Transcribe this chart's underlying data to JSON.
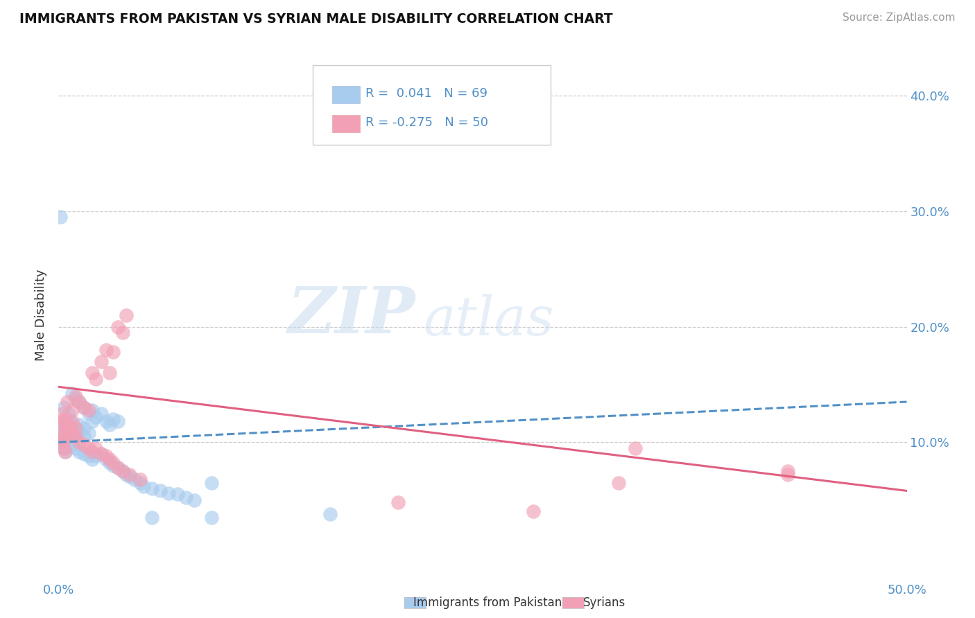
{
  "title": "IMMIGRANTS FROM PAKISTAN VS SYRIAN MALE DISABILITY CORRELATION CHART",
  "source": "Source: ZipAtlas.com",
  "ylabel": "Male Disability",
  "xlim": [
    0.0,
    0.5
  ],
  "ylim": [
    -0.02,
    0.44
  ],
  "yticks": [
    0.1,
    0.2,
    0.3,
    0.4
  ],
  "ytick_labels": [
    "10.0%",
    "20.0%",
    "30.0%",
    "40.0%"
  ],
  "gridline_y": [
    0.1,
    0.2,
    0.3,
    0.4
  ],
  "pakistan_color": "#A8CCEE",
  "syria_color": "#F2A0B5",
  "pakistan_line_color": "#5090C8",
  "syria_line_color": "#E06080",
  "pakistan_R": 0.041,
  "pakistan_N": 69,
  "syria_R": -0.275,
  "syria_N": 50,
  "legend_label_pak": "Immigrants from Pakistan",
  "legend_label_syr": "Syrians",
  "watermark_ZIP": "ZIP",
  "watermark_atlas": "atlas",
  "pakistan_scatter": [
    [
      0.005,
      0.12
    ],
    [
      0.007,
      0.118
    ],
    [
      0.01,
      0.105
    ],
    [
      0.012,
      0.115
    ],
    [
      0.015,
      0.112
    ],
    [
      0.018,
      0.108
    ],
    [
      0.02,
      0.118
    ],
    [
      0.022,
      0.122
    ],
    [
      0.025,
      0.125
    ],
    [
      0.028,
      0.118
    ],
    [
      0.03,
      0.115
    ],
    [
      0.032,
      0.12
    ],
    [
      0.035,
      0.118
    ],
    [
      0.003,
      0.13
    ],
    [
      0.006,
      0.125
    ],
    [
      0.008,
      0.142
    ],
    [
      0.01,
      0.138
    ],
    [
      0.012,
      0.135
    ],
    [
      0.015,
      0.13
    ],
    [
      0.018,
      0.125
    ],
    [
      0.02,
      0.128
    ],
    [
      0.003,
      0.108
    ],
    [
      0.005,
      0.105
    ],
    [
      0.007,
      0.1
    ],
    [
      0.008,
      0.098
    ],
    [
      0.01,
      0.095
    ],
    [
      0.012,
      0.092
    ],
    [
      0.015,
      0.09
    ],
    [
      0.018,
      0.088
    ],
    [
      0.02,
      0.085
    ],
    [
      0.022,
      0.088
    ],
    [
      0.025,
      0.09
    ],
    [
      0.028,
      0.085
    ],
    [
      0.03,
      0.082
    ],
    [
      0.032,
      0.08
    ],
    [
      0.035,
      0.078
    ],
    [
      0.038,
      0.075
    ],
    [
      0.04,
      0.072
    ],
    [
      0.042,
      0.07
    ],
    [
      0.045,
      0.068
    ],
    [
      0.048,
      0.065
    ],
    [
      0.05,
      0.062
    ],
    [
      0.055,
      0.06
    ],
    [
      0.06,
      0.058
    ],
    [
      0.065,
      0.056
    ],
    [
      0.07,
      0.055
    ],
    [
      0.075,
      0.052
    ],
    [
      0.08,
      0.05
    ],
    [
      0.002,
      0.115
    ],
    [
      0.003,
      0.112
    ],
    [
      0.004,
      0.108
    ],
    [
      0.005,
      0.115
    ],
    [
      0.006,
      0.112
    ],
    [
      0.008,
      0.11
    ],
    [
      0.01,
      0.108
    ],
    [
      0.012,
      0.11
    ],
    [
      0.015,
      0.105
    ],
    [
      0.002,
      0.1
    ],
    [
      0.003,
      0.095
    ],
    [
      0.004,
      0.092
    ],
    [
      0.001,
      0.105
    ],
    [
      0.002,
      0.108
    ],
    [
      0.003,
      0.102
    ],
    [
      0.001,
      0.295
    ],
    [
      0.055,
      0.035
    ],
    [
      0.09,
      0.065
    ],
    [
      0.16,
      0.038
    ],
    [
      0.09,
      0.035
    ]
  ],
  "syria_scatter": [
    [
      0.005,
      0.135
    ],
    [
      0.008,
      0.128
    ],
    [
      0.01,
      0.14
    ],
    [
      0.012,
      0.135
    ],
    [
      0.015,
      0.13
    ],
    [
      0.018,
      0.128
    ],
    [
      0.02,
      0.16
    ],
    [
      0.022,
      0.155
    ],
    [
      0.025,
      0.17
    ],
    [
      0.028,
      0.18
    ],
    [
      0.03,
      0.16
    ],
    [
      0.032,
      0.178
    ],
    [
      0.035,
      0.2
    ],
    [
      0.038,
      0.195
    ],
    [
      0.04,
      0.21
    ],
    [
      0.003,
      0.118
    ],
    [
      0.005,
      0.115
    ],
    [
      0.007,
      0.112
    ],
    [
      0.008,
      0.108
    ],
    [
      0.01,
      0.105
    ],
    [
      0.012,
      0.1
    ],
    [
      0.015,
      0.098
    ],
    [
      0.018,
      0.095
    ],
    [
      0.02,
      0.092
    ],
    [
      0.022,
      0.095
    ],
    [
      0.025,
      0.09
    ],
    [
      0.028,
      0.088
    ],
    [
      0.03,
      0.085
    ],
    [
      0.032,
      0.082
    ],
    [
      0.035,
      0.078
    ],
    [
      0.038,
      0.075
    ],
    [
      0.042,
      0.072
    ],
    [
      0.048,
      0.068
    ],
    [
      0.002,
      0.125
    ],
    [
      0.003,
      0.12
    ],
    [
      0.004,
      0.115
    ],
    [
      0.006,
      0.11
    ],
    [
      0.008,
      0.118
    ],
    [
      0.01,
      0.112
    ],
    [
      0.002,
      0.1
    ],
    [
      0.003,
      0.095
    ],
    [
      0.004,
      0.092
    ],
    [
      0.001,
      0.108
    ],
    [
      0.002,
      0.105
    ],
    [
      0.003,
      0.102
    ],
    [
      0.2,
      0.048
    ],
    [
      0.34,
      0.095
    ],
    [
      0.43,
      0.072
    ],
    [
      0.28,
      0.04
    ],
    [
      0.43,
      0.075
    ],
    [
      0.33,
      0.065
    ]
  ],
  "pak_trend_x": [
    0.0,
    0.5
  ],
  "pak_trend_y": [
    0.1,
    0.135
  ],
  "syr_trend_x": [
    0.0,
    0.5
  ],
  "syr_trend_y": [
    0.148,
    0.058
  ]
}
